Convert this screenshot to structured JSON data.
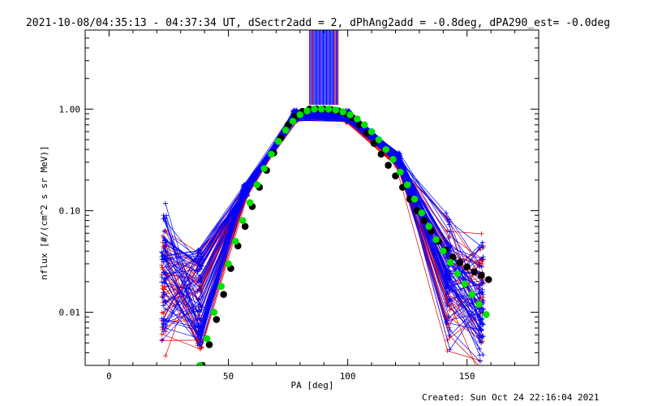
{
  "chart_data": {
    "type": "scatter",
    "title": "2021-10-08/04:35:13 - 04:37:34 UT, dSectr2add = 2, dPhAng2add = -0.8deg, dPA290_est= -0.0deg",
    "xlabel": "PA [deg]",
    "ylabel": "nflux [#/(cm^2 s sr MeV)]",
    "xlim": [
      -10,
      180
    ],
    "ylim": [
      0.003,
      6.0
    ],
    "yscale": "log",
    "grid": false,
    "x_ticks": [
      0,
      50,
      100,
      150
    ],
    "x_tick_labels": [
      "0",
      "50",
      "100",
      "150"
    ],
    "y_ticks": [
      1.0,
      0.1,
      0.01
    ],
    "y_tick_labels": [
      "1.00",
      "0.10",
      "0.01"
    ],
    "series": [
      {
        "style": "black-dots",
        "color": "#000000",
        "x": [
          39,
          42,
          45,
          48,
          51,
          54,
          57,
          60,
          63,
          66,
          69,
          72,
          75,
          78,
          81,
          84,
          87,
          90,
          93,
          96,
          99,
          102,
          105,
          108,
          111,
          114,
          117,
          120,
          123,
          126,
          129,
          132,
          135,
          138,
          141,
          144,
          147,
          150,
          153,
          156,
          159
        ],
        "y": [
          0.003,
          0.0048,
          0.0085,
          0.015,
          0.027,
          0.045,
          0.07,
          0.11,
          0.17,
          0.25,
          0.37,
          0.52,
          0.7,
          0.85,
          0.95,
          1.0,
          1.0,
          1.0,
          0.99,
          0.96,
          0.9,
          0.82,
          0.7,
          0.58,
          0.46,
          0.36,
          0.28,
          0.22,
          0.17,
          0.13,
          0.1,
          0.08,
          0.063,
          0.05,
          0.041,
          0.035,
          0.031,
          0.028,
          0.025,
          0.023,
          0.021
        ]
      },
      {
        "style": "green-dots",
        "color": "#00e000",
        "x": [
          38,
          41,
          44,
          47,
          50,
          53,
          56,
          59,
          62,
          65,
          68,
          71,
          74,
          77,
          80,
          83,
          86,
          89,
          92,
          95,
          98,
          101,
          104,
          107,
          110,
          113,
          116,
          119,
          122,
          125,
          128,
          131,
          134,
          137,
          140,
          143,
          146,
          149,
          152,
          155,
          158
        ],
        "y": [
          0.003,
          0.0055,
          0.01,
          0.018,
          0.03,
          0.05,
          0.08,
          0.12,
          0.18,
          0.26,
          0.36,
          0.48,
          0.62,
          0.76,
          0.88,
          0.96,
          1.0,
          1.0,
          1.0,
          0.98,
          0.94,
          0.88,
          0.8,
          0.7,
          0.6,
          0.5,
          0.4,
          0.32,
          0.24,
          0.18,
          0.13,
          0.095,
          0.07,
          0.052,
          0.04,
          0.031,
          0.024,
          0.019,
          0.015,
          0.012,
          0.0095
        ]
      },
      {
        "style": "red-lines",
        "color": "#e00000",
        "x": [
          23,
          38,
          57,
          78,
          100,
          121,
          142,
          156
        ],
        "y": [
          0.02,
          0.013,
          0.15,
          0.85,
          0.83,
          0.3,
          0.018,
          0.012
        ]
      },
      {
        "style": "blue-lines",
        "color": "#0000ff",
        "x": [
          23,
          38,
          57,
          78,
          100,
          121,
          142,
          156
        ],
        "y": [
          0.022,
          0.014,
          0.16,
          0.87,
          0.86,
          0.33,
          0.02,
          0.013
        ]
      }
    ]
  },
  "footer": {
    "created_text": "Created: Sun Oct 24 22:16:04 2021"
  }
}
